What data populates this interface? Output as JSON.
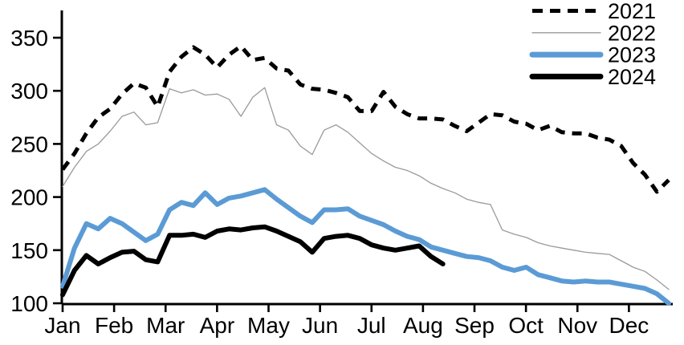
{
  "chart_data": {
    "type": "line",
    "title": "",
    "xlabel": "",
    "ylabel": "",
    "x_unit": "week-of-year",
    "x_tick_labels": [
      "Jan",
      "Feb",
      "Mar",
      "Apr",
      "May",
      "Jun",
      "Jul",
      "Aug",
      "Sep",
      "Oct",
      "Nov",
      "Dec"
    ],
    "y_ticks": [
      100,
      150,
      200,
      250,
      300,
      350
    ],
    "ylim": [
      100,
      375
    ],
    "grid": false,
    "legend_position": "top-right",
    "axis_color": "#000000",
    "series": [
      {
        "name": "2021",
        "color": "#000000",
        "style": "dashed",
        "stroke_width": 5,
        "start_week": 1,
        "values": [
          226,
          241,
          260,
          275,
          283,
          297,
          307,
          303,
          285,
          318,
          332,
          341,
          334,
          322,
          334,
          342,
          329,
          331,
          321,
          319,
          306,
          302,
          301,
          298,
          294,
          281,
          281,
          299,
          285,
          278,
          274,
          274,
          273,
          267,
          262,
          270,
          278,
          277,
          271,
          269,
          263,
          267,
          261,
          260,
          260,
          256,
          254,
          248,
          232,
          221,
          205,
          216
        ]
      },
      {
        "name": "2022",
        "color": "#9a9a9a",
        "style": "solid",
        "stroke_width": 1.3,
        "start_week": 1,
        "values": [
          210,
          228,
          243,
          250,
          262,
          276,
          280,
          268,
          270,
          302,
          298,
          301,
          296,
          297,
          292,
          276,
          294,
          303,
          268,
          263,
          248,
          240,
          263,
          268,
          261,
          251,
          241,
          234,
          228,
          225,
          220,
          213,
          208,
          204,
          198,
          195,
          193,
          169,
          165,
          162,
          157,
          154,
          152,
          150,
          148,
          147,
          146,
          140,
          134,
          130,
          122,
          113
        ]
      },
      {
        "name": "2023",
        "color": "#5b9bd5",
        "style": "solid",
        "stroke_width": 6,
        "start_week": 1,
        "values": [
          116,
          152,
          175,
          170,
          180,
          175,
          167,
          159,
          165,
          188,
          195,
          192,
          204,
          193,
          199,
          201,
          204,
          207,
          198,
          190,
          182,
          176,
          188,
          188,
          189,
          182,
          178,
          174,
          168,
          163,
          160,
          153,
          150,
          147,
          144,
          143,
          140,
          134,
          131,
          134,
          127,
          124,
          121,
          120,
          121,
          120,
          120,
          118,
          116,
          114,
          109,
          100
        ]
      },
      {
        "name": "2024",
        "color": "#000000",
        "style": "solid",
        "stroke_width": 6,
        "start_week": 1,
        "values": [
          108,
          131,
          145,
          137,
          143,
          148,
          149,
          141,
          139,
          164,
          164,
          165,
          162,
          168,
          170,
          169,
          171,
          172,
          168,
          163,
          158,
          148,
          161,
          163,
          164,
          161,
          155,
          152,
          150,
          152,
          154,
          144,
          137
        ]
      }
    ]
  },
  "legend": {
    "items": [
      {
        "label": "2021"
      },
      {
        "label": "2022"
      },
      {
        "label": "2023"
      },
      {
        "label": "2024"
      }
    ]
  }
}
